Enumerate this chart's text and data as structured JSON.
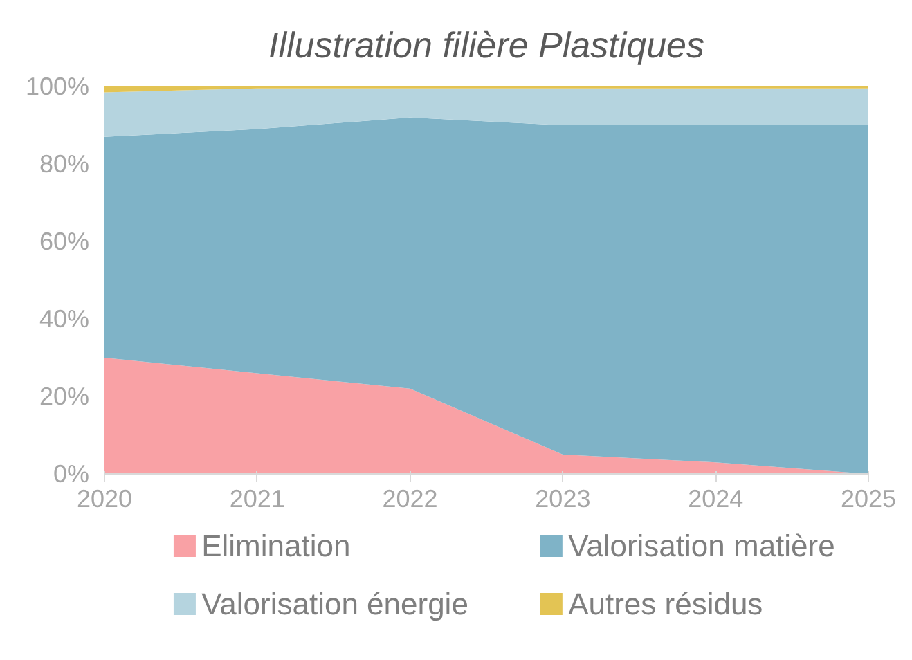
{
  "chart_data": {
    "type": "area",
    "stacked": true,
    "title": "Illustration filière Plastiques",
    "x": [
      2020,
      2021,
      2022,
      2023,
      2024,
      2025
    ],
    "series": [
      {
        "name": "Elimination",
        "color": "#f9a1a5",
        "values": [
          30,
          26,
          22,
          5,
          3,
          0
        ]
      },
      {
        "name": "Valorisation matière",
        "color": "#7fb3c7",
        "values": [
          57,
          63,
          70,
          85,
          87,
          90
        ]
      },
      {
        "name": "Valorisation énergie",
        "color": "#b5d4df",
        "values": [
          11.5,
          10.5,
          7.5,
          9.5,
          9.5,
          9.5
        ]
      },
      {
        "name": "Autres résidus",
        "color": "#e3c454",
        "values": [
          1.5,
          0.5,
          0.5,
          0.5,
          0.5,
          0.5
        ]
      }
    ],
    "xlim": [
      2020,
      2025
    ],
    "xticks": [
      2020,
      2021,
      2022,
      2023,
      2024,
      2025
    ],
    "ylim": [
      0,
      100
    ],
    "yticks": [
      {
        "value": 0,
        "label": "0%"
      },
      {
        "value": 20,
        "label": "20%"
      },
      {
        "value": 40,
        "label": "40%"
      },
      {
        "value": 60,
        "label": "60%"
      },
      {
        "value": 80,
        "label": "80%"
      },
      {
        "value": 100,
        "label": "100%"
      }
    ],
    "grid": false,
    "legend": "bottom"
  }
}
